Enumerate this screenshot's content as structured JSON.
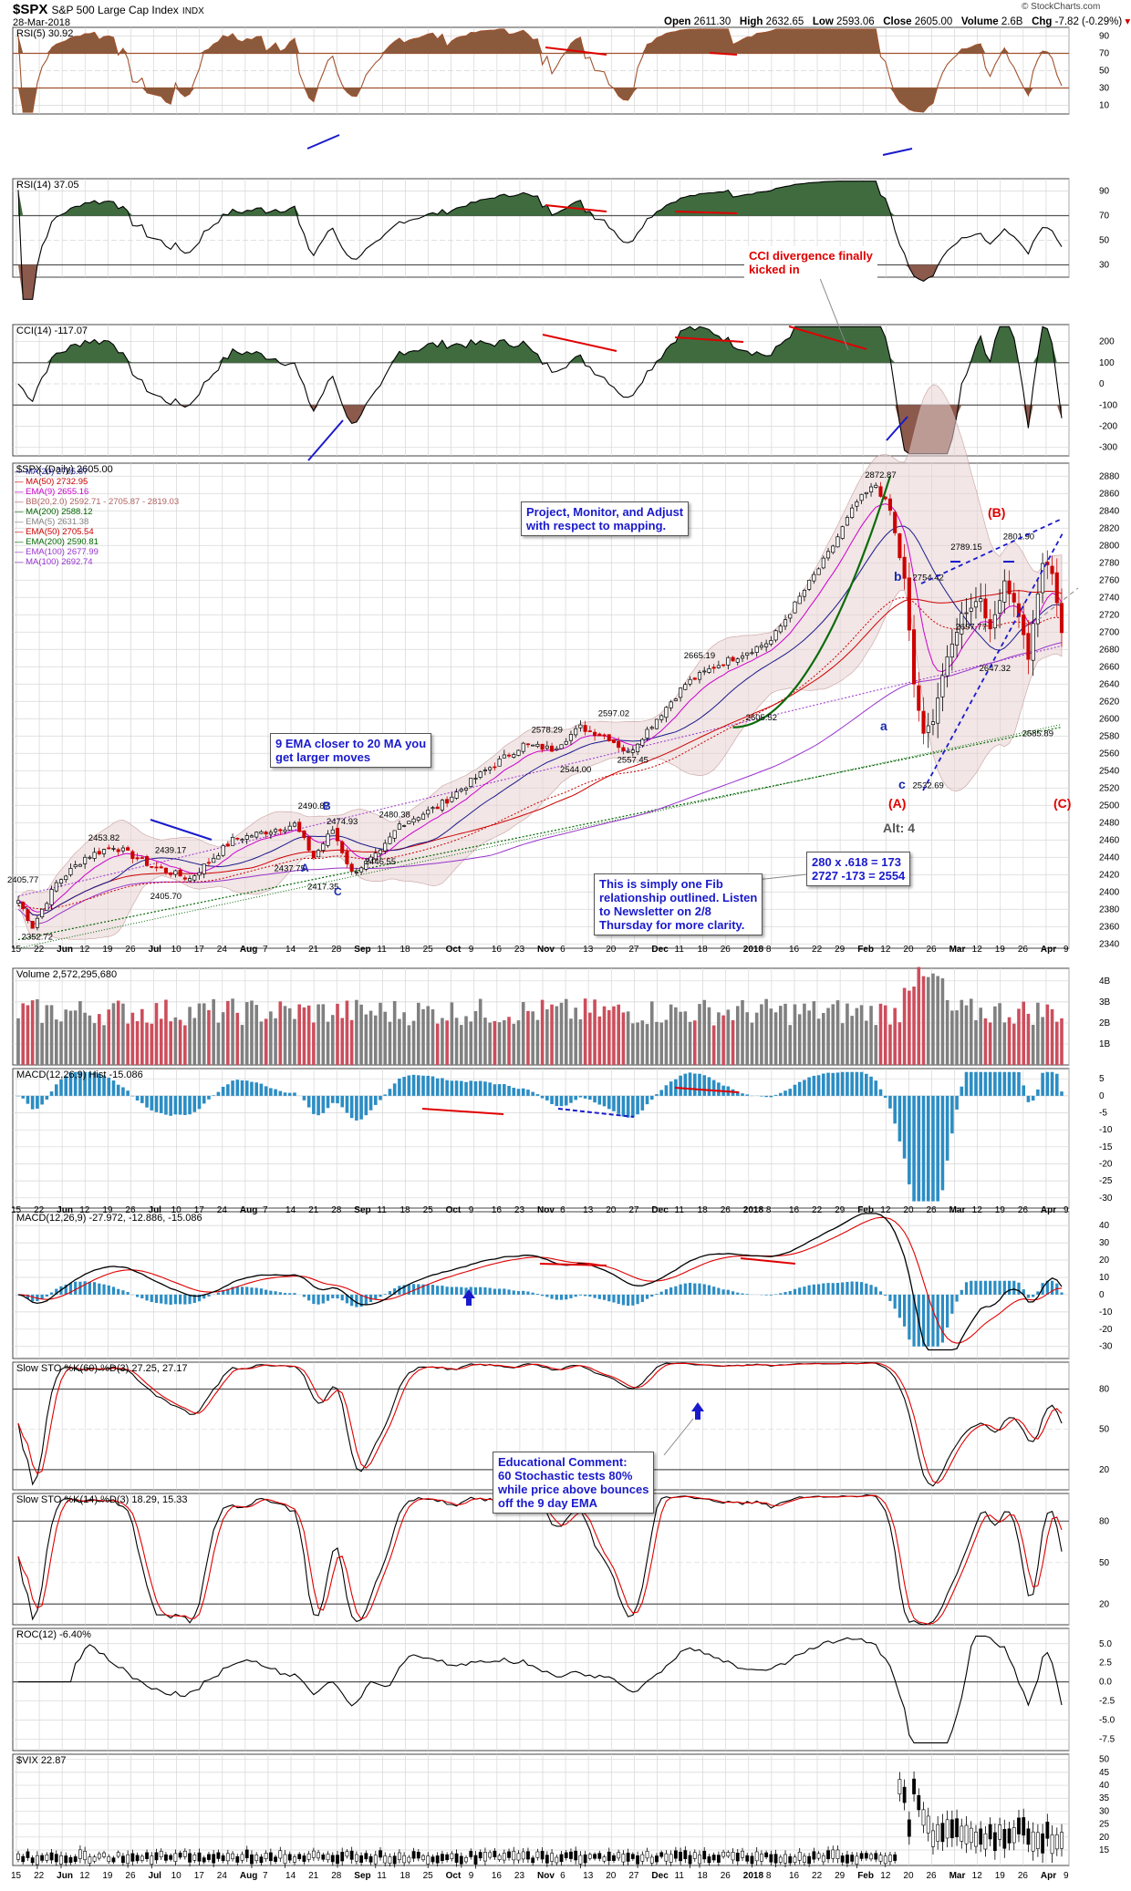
{
  "header": {
    "symbol": "$SPX",
    "name": "S&P 500 Large Cap Index",
    "exchange": "INDX",
    "date": "28-Mar-2018",
    "open_label": "Open",
    "open": "2611.30",
    "high_label": "High",
    "high": "2632.65",
    "low_label": "Low",
    "low": "2593.06",
    "close_label": "Close",
    "close": "2605.00",
    "volume_label": "Volume",
    "volume": "2.6B",
    "chg_label": "Chg",
    "chg": "-7.82 (-0.29%)",
    "chg_arrow": "▾",
    "watermark": "© StockCharts.com"
  },
  "colors": {
    "rsi_fill": "#8b5a3c",
    "green_fill": "#3f6b3f",
    "cci_neg": "#8b5a4c",
    "up_candle": "#ffffff",
    "down_candle": "#cc0000",
    "vol_up": "#808080",
    "vol_down": "#cc4e5c",
    "hist": "#2b8dc4",
    "macd": "#000000",
    "signal": "#e00000",
    "grid": "#d6d6d6",
    "annot_red": "#e00000",
    "annot_blue": "#1a1acc"
  },
  "x_axis": {
    "labels": [
      "15",
      "22",
      "Jun",
      "12",
      "19",
      "26",
      "Jul",
      "10",
      "17",
      "24",
      "Aug",
      "7",
      "14",
      "21",
      "28",
      "Sep",
      "11",
      "18",
      "25",
      "Oct",
      "9",
      "16",
      "23",
      "Nov",
      "6",
      "13",
      "20",
      "27",
      "Dec",
      "11",
      "18",
      "26",
      "2018",
      "8",
      "16",
      "22",
      "29",
      "Feb",
      "12",
      "20",
      "26",
      "Mar",
      "12",
      "19",
      "26",
      "Apr",
      "9"
    ]
  },
  "panels": {
    "rsi5": {
      "title": "RSI(5) 30.92",
      "ticks": [
        "90",
        "70",
        "50",
        "30",
        "10"
      ],
      "levels": [
        90,
        70,
        50,
        30,
        10
      ]
    },
    "rsi14": {
      "title": "RSI(14) 37.05",
      "ticks": [
        "90",
        "70",
        "50",
        "30"
      ],
      "levels": [
        90,
        70,
        50,
        30
      ]
    },
    "cci": {
      "title": "CCI(14) -117.07",
      "ticks": [
        "200",
        "100",
        "0",
        "-100",
        "-200",
        "-300"
      ],
      "levels": [
        200,
        100,
        0,
        -100,
        -200,
        -300
      ]
    },
    "price": {
      "title": "$SPX (Daily) 2605.00",
      "legend": [
        {
          "text": "MA(20) 2705.87",
          "color": "#1a1a8c"
        },
        {
          "text": "MA(50) 2732.95",
          "color": "#cc0000"
        },
        {
          "text": "EMA(9) 2655.16",
          "color": "#cc00cc"
        },
        {
          "text": "BB(20,2.0) 2592.71 - 2705.87 - 2819.03",
          "color": "#b06060"
        },
        {
          "text": "MA(200) 2588.12",
          "color": "#006600"
        },
        {
          "text": "EMA(5) 2631.38",
          "color": "#808080"
        },
        {
          "text": "EMA(50) 2705.54",
          "color": "#cc0000"
        },
        {
          "text": "EMA(200) 2590.81",
          "color": "#006600"
        },
        {
          "text": "EMA(100) 2677.99",
          "color": "#9933cc"
        },
        {
          "text": "MA(100) 2692.74",
          "color": "#9933cc"
        }
      ],
      "ticks": [
        "2880",
        "2860",
        "2840",
        "2820",
        "2800",
        "2780",
        "2760",
        "2740",
        "2720",
        "2700",
        "2680",
        "2660",
        "2640",
        "2620",
        "2600",
        "2580",
        "2560",
        "2540",
        "2520",
        "2500",
        "2480",
        "2460",
        "2440",
        "2420",
        "2400",
        "2380",
        "2360",
        "2340"
      ],
      "point_labels": [
        "2872.87",
        "2789.15",
        "2801.90",
        "2754.42",
        "2697.77",
        "2647.32",
        "2585.89",
        "2532.69",
        "2665.19",
        "2605.52",
        "2597.02",
        "2578.29",
        "2557.45",
        "2544.00",
        "2490.87",
        "2474.93",
        "2480.38",
        "2437.75",
        "2446.55",
        "2417.35",
        "2453.82",
        "2439.17",
        "2405.70",
        "2405.77",
        "2352.72"
      ]
    },
    "volume": {
      "title": "Volume 2,572,295,680",
      "ticks": [
        "4B",
        "3B",
        "2B",
        "1B"
      ]
    },
    "macd_hist": {
      "title": "MACD(12,26,9) Hist -15.086",
      "ticks": [
        "5",
        "0",
        "-5",
        "-10",
        "-15",
        "-20",
        "-25",
        "-30"
      ]
    },
    "macd": {
      "title": "MACD(12,26,9) -27.972, -12.886, -15.086",
      "ticks": [
        "40",
        "30",
        "20",
        "10",
        "0",
        "-10",
        "-20",
        "-30"
      ]
    },
    "sto60": {
      "title": "Slow STO %K(60) %D(3) 27.25, 27.17",
      "ticks": [
        "80",
        "50",
        "20"
      ]
    },
    "sto14": {
      "title": "Slow STO %K(14) %D(3) 18.29, 15.33",
      "ticks": [
        "80",
        "50",
        "20"
      ]
    },
    "roc": {
      "title": "ROC(12) -6.40%",
      "ticks": [
        "5.0",
        "2.5",
        "0.0",
        "-2.5",
        "-5.0",
        "-7.5"
      ]
    },
    "vix": {
      "title": "$VIX 22.87",
      "ticks": [
        "50",
        "45",
        "40",
        "35",
        "30",
        "25",
        "20",
        "15"
      ]
    }
  },
  "annotations": {
    "cci_div": "CCI divergence finally\nkicked in",
    "project": "Project, Monitor, and Adjust\nwith respect to mapping.",
    "ema9": "9 EMA closer to 20 MA you\nget larger moves",
    "fib": "280 x .618 = 173\n2727 -173 = 2554",
    "fib_note": "This is simply one Fib\nrelationship outlined. Listen\nto Newsletter on 2/8\nThursday for more clarity.",
    "edu": "Educational Comment:\n60 Stochastic tests 80%\nwhile price above bounces\noff the 9 day EMA"
  },
  "waves": {
    "b_blue": "b",
    "a_blue": "a",
    "c_blue": "c",
    "A_red": "(A)",
    "B_red": "(B)",
    "C_red": "(C)",
    "alt4": "Alt: 4",
    "A_small": "A",
    "B_small": "B",
    "C_small": "C"
  },
  "chart_data": {
    "type": "candlestick",
    "title": "$SPX S&P 500 Large Cap Index INDX",
    "x_range": [
      "2017-05-15",
      "2018-03-28"
    ],
    "price_ylim": [
      2335,
      2895
    ],
    "price_pivots": [
      {
        "date": "2017-05-17",
        "value": 2352.72
      },
      {
        "date": "2017-05-15",
        "value": 2405.77
      },
      {
        "date": "2017-06-02",
        "value": 2453.82
      },
      {
        "date": "2017-06-19",
        "value": 2439.17
      },
      {
        "date": "2017-07-06",
        "value": 2405.7
      },
      {
        "date": "2017-08-08",
        "value": 2490.87
      },
      {
        "date": "2017-08-11",
        "value": 2437.75
      },
      {
        "date": "2017-08-16",
        "value": 2474.93
      },
      {
        "date": "2017-08-21",
        "value": 2417.35
      },
      {
        "date": "2017-08-31",
        "value": 2446.55
      },
      {
        "date": "2017-09-01",
        "value": 2480.38
      },
      {
        "date": "2017-10-05",
        "value": 2578.29
      },
      {
        "date": "2017-10-25",
        "value": 2544.0
      },
      {
        "date": "2017-11-07",
        "value": 2597.02
      },
      {
        "date": "2017-11-15",
        "value": 2557.45
      },
      {
        "date": "2017-11-29",
        "value": 2605.52
      },
      {
        "date": "2017-12-04",
        "value": 2665.19
      },
      {
        "date": "2018-01-26",
        "value": 2872.87
      },
      {
        "date": "2018-02-09",
        "value": 2532.69
      },
      {
        "date": "2018-02-16",
        "value": 2754.42
      },
      {
        "date": "2018-02-23",
        "value": 2697.77
      },
      {
        "date": "2018-02-27",
        "value": 2789.15
      },
      {
        "date": "2018-03-02",
        "value": 2647.32
      },
      {
        "date": "2018-03-12",
        "value": 2801.9
      },
      {
        "date": "2018-03-23",
        "value": 2585.89
      },
      {
        "date": "2018-03-28",
        "value": 2605.0
      }
    ],
    "last_values": {
      "close": 2605.0,
      "rsi5": 30.92,
      "rsi14": 37.05,
      "cci14": -117.07,
      "volume": 2572295680,
      "macd": -27.972,
      "macd_signal": -12.886,
      "macd_hist": -15.086,
      "sto60_k": 27.25,
      "sto60_d": 27.17,
      "sto14_k": 18.29,
      "sto14_d": 15.33,
      "roc12": -6.4,
      "vix": 22.87
    },
    "grid": true
  }
}
